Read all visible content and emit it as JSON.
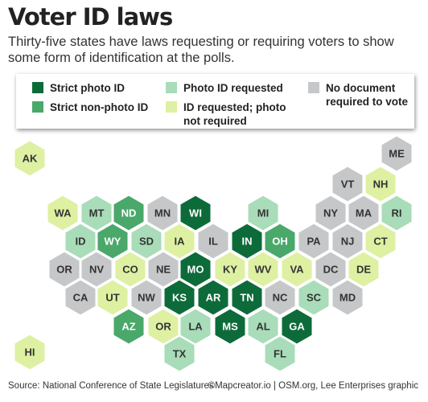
{
  "title": "Voter ID laws",
  "subtitle": "Thirty-five states have laws requesting or requiring voters to show some form of identification at the polls.",
  "legend": [
    {
      "label": "Strict photo ID",
      "color": "#0d6b3a"
    },
    {
      "label": "Strict non-photo ID",
      "color": "#4aa86a"
    },
    {
      "label": "Photo ID requested",
      "color": "#a9dcb8"
    },
    {
      "label": "ID requested; photo not required",
      "color": "#def0a2"
    },
    {
      "label": "No document required to vote",
      "color": "#c6c7c9"
    }
  ],
  "states": [
    {
      "label": "AK",
      "color": "#def0a2"
    },
    {
      "label": "ME",
      "color": "#c6c7c9"
    },
    {
      "label": "VT",
      "color": "#c6c7c9"
    },
    {
      "label": "NH",
      "color": "#def0a2"
    },
    {
      "label": "WA",
      "color": "#def0a2"
    },
    {
      "label": "MT",
      "color": "#a9dcb8"
    },
    {
      "label": "ND",
      "color": "#4aa86a"
    },
    {
      "label": "MN",
      "color": "#c6c7c9"
    },
    {
      "label": "WI",
      "color": "#0d6b3a"
    },
    {
      "label": "MI",
      "color": "#a9dcb8"
    },
    {
      "label": "NY",
      "color": "#c6c7c9"
    },
    {
      "label": "MA",
      "color": "#c6c7c9"
    },
    {
      "label": "RI",
      "color": "#a9dcb8"
    },
    {
      "label": "ID",
      "color": "#a9dcb8"
    },
    {
      "label": "WY",
      "color": "#4aa86a"
    },
    {
      "label": "SD",
      "color": "#a9dcb8"
    },
    {
      "label": "IA",
      "color": "#def0a2"
    },
    {
      "label": "IL",
      "color": "#c6c7c9"
    },
    {
      "label": "IN",
      "color": "#0d6b3a"
    },
    {
      "label": "OH",
      "color": "#4aa86a"
    },
    {
      "label": "PA",
      "color": "#c6c7c9"
    },
    {
      "label": "NJ",
      "color": "#c6c7c9"
    },
    {
      "label": "CT",
      "color": "#def0a2"
    },
    {
      "label": "OR",
      "color": "#c6c7c9"
    },
    {
      "label": "NV",
      "color": "#c6c7c9"
    },
    {
      "label": "CO",
      "color": "#def0a2"
    },
    {
      "label": "NE",
      "color": "#c6c7c9"
    },
    {
      "label": "MO",
      "color": "#0d6b3a"
    },
    {
      "label": "KY",
      "color": "#def0a2"
    },
    {
      "label": "WV",
      "color": "#def0a2"
    },
    {
      "label": "VA",
      "color": "#def0a2"
    },
    {
      "label": "DC",
      "color": "#c6c7c9"
    },
    {
      "label": "DE",
      "color": "#def0a2"
    },
    {
      "label": "CA",
      "color": "#c6c7c9"
    },
    {
      "label": "UT",
      "color": "#def0a2"
    },
    {
      "label": "NW",
      "color": "#c6c7c9"
    },
    {
      "label": "KS",
      "color": "#0d6b3a"
    },
    {
      "label": "AR",
      "color": "#0d6b3a"
    },
    {
      "label": "TN",
      "color": "#0d6b3a"
    },
    {
      "label": "NC",
      "color": "#c6c7c9"
    },
    {
      "label": "SC",
      "color": "#a9dcb8"
    },
    {
      "label": "MD",
      "color": "#c6c7c9"
    },
    {
      "label": "AZ",
      "color": "#4aa86a"
    },
    {
      "label": "OR",
      "color": "#def0a2"
    },
    {
      "label": "LA",
      "color": "#a9dcb8"
    },
    {
      "label": "MS",
      "color": "#0d6b3a"
    },
    {
      "label": "AL",
      "color": "#a9dcb8"
    },
    {
      "label": "GA",
      "color": "#0d6b3a"
    },
    {
      "label": "TX",
      "color": "#a9dcb8"
    },
    {
      "label": "FL",
      "color": "#a9dcb8"
    },
    {
      "label": "HI",
      "color": "#def0a2"
    }
  ],
  "source": "Source: National Conference of State Legislatures",
  "credit": "©Mapcreator.io | OSM.org, Lee Enterprises graphic"
}
